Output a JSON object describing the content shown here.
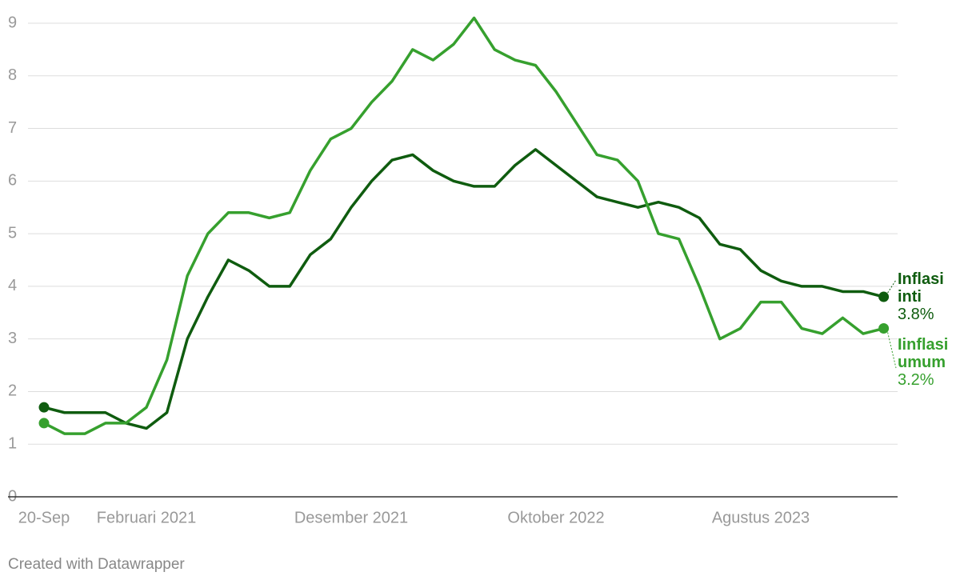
{
  "chart_data": {
    "type": "line",
    "categories": [
      "20-Sep",
      null,
      null,
      null,
      null,
      "Februari 2021",
      null,
      null,
      null,
      null,
      null,
      null,
      null,
      null,
      null,
      "Desember 2021",
      null,
      null,
      null,
      null,
      null,
      null,
      null,
      null,
      null,
      "Oktober 2022",
      null,
      null,
      null,
      null,
      null,
      null,
      null,
      null,
      null,
      "Agustus 2023",
      null,
      null,
      null,
      null,
      null,
      null
    ],
    "series": [
      {
        "name": "Inflasi inti",
        "color": "#0f5c0f",
        "values": [
          1.7,
          1.6,
          1.6,
          1.6,
          1.4,
          1.3,
          1.6,
          3.0,
          3.8,
          4.5,
          4.3,
          4.0,
          4.0,
          4.6,
          4.9,
          5.5,
          6.0,
          6.4,
          6.5,
          6.2,
          6.0,
          5.9,
          5.9,
          6.3,
          6.6,
          6.3,
          6.0,
          5.7,
          5.6,
          5.5,
          5.6,
          5.5,
          5.3,
          4.8,
          4.7,
          4.3,
          4.1,
          4.0,
          4.0,
          3.9,
          3.9,
          3.8
        ],
        "value_labels": [
          null,
          null,
          null,
          null,
          null,
          null,
          null,
          null,
          null,
          null,
          null,
          null,
          null,
          null,
          null,
          null,
          null,
          null,
          null,
          null,
          null,
          null,
          null,
          null,
          null,
          null,
          null,
          null,
          null,
          null,
          null,
          null,
          null,
          null,
          null,
          null,
          null,
          null,
          null,
          null,
          null,
          "3.8%"
        ]
      },
      {
        "name": "Iinflasi umum",
        "color": "#36a02e",
        "values": [
          1.4,
          1.2,
          1.2,
          1.4,
          1.4,
          1.7,
          2.6,
          4.2,
          5.0,
          5.4,
          5.4,
          5.3,
          5.4,
          6.2,
          6.8,
          7.0,
          7.5,
          7.9,
          8.5,
          8.3,
          8.6,
          9.1,
          8.5,
          8.3,
          8.2,
          7.7,
          7.1,
          6.5,
          6.4,
          6.0,
          5.0,
          4.9,
          4.0,
          3.0,
          3.2,
          3.7,
          3.7,
          3.2,
          3.1,
          3.4,
          3.1,
          3.2
        ],
        "value_labels": [
          null,
          null,
          null,
          null,
          null,
          null,
          null,
          null,
          null,
          null,
          null,
          null,
          null,
          null,
          null,
          null,
          null,
          null,
          null,
          null,
          null,
          null,
          null,
          null,
          null,
          null,
          null,
          null,
          null,
          null,
          null,
          null,
          null,
          null,
          null,
          null,
          null,
          null,
          null,
          null,
          null,
          "3.2%"
        ]
      }
    ],
    "ylim": [
      0,
      9
    ],
    "yticks": [
      0,
      1,
      2,
      3,
      4,
      5,
      6,
      7,
      8,
      9
    ],
    "grid": true,
    "footer": "Created with Datawrapper"
  }
}
